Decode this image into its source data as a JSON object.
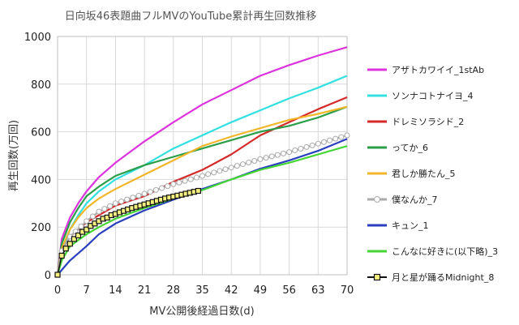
{
  "chart_data": {
    "type": "line",
    "title": "日向坂46表題曲フルMVのYouTube累計再生回数推移",
    "xlabel": "MV公開後経過日数(d)",
    "ylabel": "再生回数(万回)",
    "xlim": [
      0,
      70
    ],
    "ylim": [
      0,
      1000
    ],
    "xticks": [
      0,
      7,
      14,
      21,
      28,
      35,
      42,
      49,
      56,
      63,
      70
    ],
    "yticks": [
      0,
      200,
      400,
      600,
      800,
      1000
    ],
    "grid": true,
    "legend": "right",
    "series": [
      {
        "name": "アザトカワイイ_1stAb",
        "color": "#dd33dd",
        "marker": "none",
        "points": [
          [
            0,
            0
          ],
          [
            1,
            150
          ],
          [
            3,
            240
          ],
          [
            5,
            300
          ],
          [
            7,
            350
          ],
          [
            10,
            410
          ],
          [
            14,
            470
          ],
          [
            21,
            560
          ],
          [
            28,
            640
          ],
          [
            35,
            715
          ],
          [
            42,
            775
          ],
          [
            49,
            835
          ],
          [
            56,
            880
          ],
          [
            63,
            920
          ],
          [
            70,
            955
          ]
        ]
      },
      {
        "name": "ソンナコトナイヨ_4",
        "color": "#33e0e0",
        "marker": "none",
        "points": [
          [
            0,
            0
          ],
          [
            1,
            100
          ],
          [
            3,
            190
          ],
          [
            5,
            250
          ],
          [
            7,
            300
          ],
          [
            10,
            350
          ],
          [
            14,
            400
          ],
          [
            21,
            460
          ],
          [
            28,
            530
          ],
          [
            35,
            585
          ],
          [
            42,
            640
          ],
          [
            49,
            690
          ],
          [
            56,
            740
          ],
          [
            63,
            785
          ],
          [
            70,
            835
          ]
        ]
      },
      {
        "name": "ドレミソラシド_2",
        "color": "#d42a2a",
        "marker": "none",
        "points": [
          [
            0,
            0
          ],
          [
            1,
            100
          ],
          [
            3,
            160
          ],
          [
            7,
            220
          ],
          [
            10,
            250
          ],
          [
            14,
            290
          ],
          [
            21,
            330
          ],
          [
            28,
            390
          ],
          [
            35,
            440
          ],
          [
            42,
            505
          ],
          [
            49,
            585
          ],
          [
            56,
            640
          ],
          [
            63,
            695
          ],
          [
            70,
            745
          ]
        ]
      },
      {
        "name": "ってか_6",
        "color": "#2a9e48",
        "marker": "none",
        "points": [
          [
            0,
            0
          ],
          [
            1,
            130
          ],
          [
            3,
            220
          ],
          [
            5,
            280
          ],
          [
            7,
            330
          ],
          [
            10,
            370
          ],
          [
            14,
            415
          ],
          [
            21,
            460
          ],
          [
            28,
            495
          ],
          [
            35,
            530
          ],
          [
            42,
            565
          ],
          [
            49,
            600
          ],
          [
            56,
            625
          ],
          [
            63,
            660
          ],
          [
            70,
            705
          ]
        ]
      },
      {
        "name": "君しか勝たん_5",
        "color": "#f2b62a",
        "marker": "none",
        "points": [
          [
            0,
            0
          ],
          [
            1,
            110
          ],
          [
            3,
            190
          ],
          [
            5,
            240
          ],
          [
            7,
            280
          ],
          [
            10,
            320
          ],
          [
            14,
            360
          ],
          [
            21,
            420
          ],
          [
            28,
            480
          ],
          [
            35,
            540
          ],
          [
            42,
            580
          ],
          [
            49,
            615
          ],
          [
            56,
            650
          ],
          [
            63,
            675
          ],
          [
            70,
            705
          ]
        ]
      },
      {
        "name": "僕なんか_7",
        "color": "#aaaaaa",
        "marker": "circle",
        "points": [
          [
            0,
            0
          ],
          [
            1,
            100
          ],
          [
            3,
            160
          ],
          [
            7,
            225
          ],
          [
            10,
            265
          ],
          [
            14,
            300
          ],
          [
            21,
            340
          ],
          [
            28,
            380
          ],
          [
            35,
            415
          ],
          [
            42,
            450
          ],
          [
            49,
            485
          ],
          [
            56,
            515
          ],
          [
            63,
            550
          ],
          [
            70,
            585
          ]
        ]
      },
      {
        "name": "キュン_1",
        "color": "#2a3fbf",
        "marker": "none",
        "points": [
          [
            0,
            0
          ],
          [
            1,
            20
          ],
          [
            3,
            60
          ],
          [
            7,
            120
          ],
          [
            10,
            170
          ],
          [
            14,
            215
          ],
          [
            21,
            270
          ],
          [
            28,
            315
          ],
          [
            35,
            360
          ],
          [
            42,
            400
          ],
          [
            49,
            445
          ],
          [
            56,
            480
          ],
          [
            63,
            520
          ],
          [
            70,
            570
          ]
        ]
      },
      {
        "name": "こんなに好きに(以下略)_3",
        "color": "#44d633",
        "marker": "none",
        "points": [
          [
            0,
            0
          ],
          [
            1,
            60
          ],
          [
            3,
            120
          ],
          [
            7,
            170
          ],
          [
            10,
            200
          ],
          [
            14,
            235
          ],
          [
            21,
            280
          ],
          [
            28,
            320
          ],
          [
            35,
            355
          ],
          [
            42,
            400
          ],
          [
            49,
            440
          ],
          [
            56,
            470
          ],
          [
            63,
            505
          ],
          [
            70,
            540
          ]
        ]
      },
      {
        "name": "月と星が踊るMidnight_8",
        "color": "#111111",
        "fill": "#f5f080",
        "marker": "square",
        "points": [
          [
            0,
            0
          ],
          [
            1,
            80
          ],
          [
            2,
            110
          ],
          [
            3,
            130
          ],
          [
            4,
            150
          ],
          [
            5,
            165
          ],
          [
            6,
            180
          ],
          [
            7,
            190
          ],
          [
            8,
            205
          ],
          [
            9,
            215
          ],
          [
            10,
            225
          ],
          [
            11,
            235
          ],
          [
            12,
            240
          ],
          [
            13,
            250
          ],
          [
            14,
            255
          ],
          [
            15,
            262
          ],
          [
            16,
            268
          ],
          [
            17,
            274
          ],
          [
            18,
            280
          ],
          [
            19,
            285
          ],
          [
            20,
            290
          ],
          [
            21,
            295
          ],
          [
            22,
            300
          ],
          [
            23,
            305
          ],
          [
            24,
            310
          ],
          [
            25,
            315
          ],
          [
            26,
            320
          ],
          [
            27,
            324
          ],
          [
            28,
            328
          ],
          [
            29,
            332
          ],
          [
            30,
            336
          ],
          [
            31,
            340
          ],
          [
            32,
            344
          ],
          [
            33,
            348
          ],
          [
            34,
            352
          ]
        ]
      }
    ]
  }
}
